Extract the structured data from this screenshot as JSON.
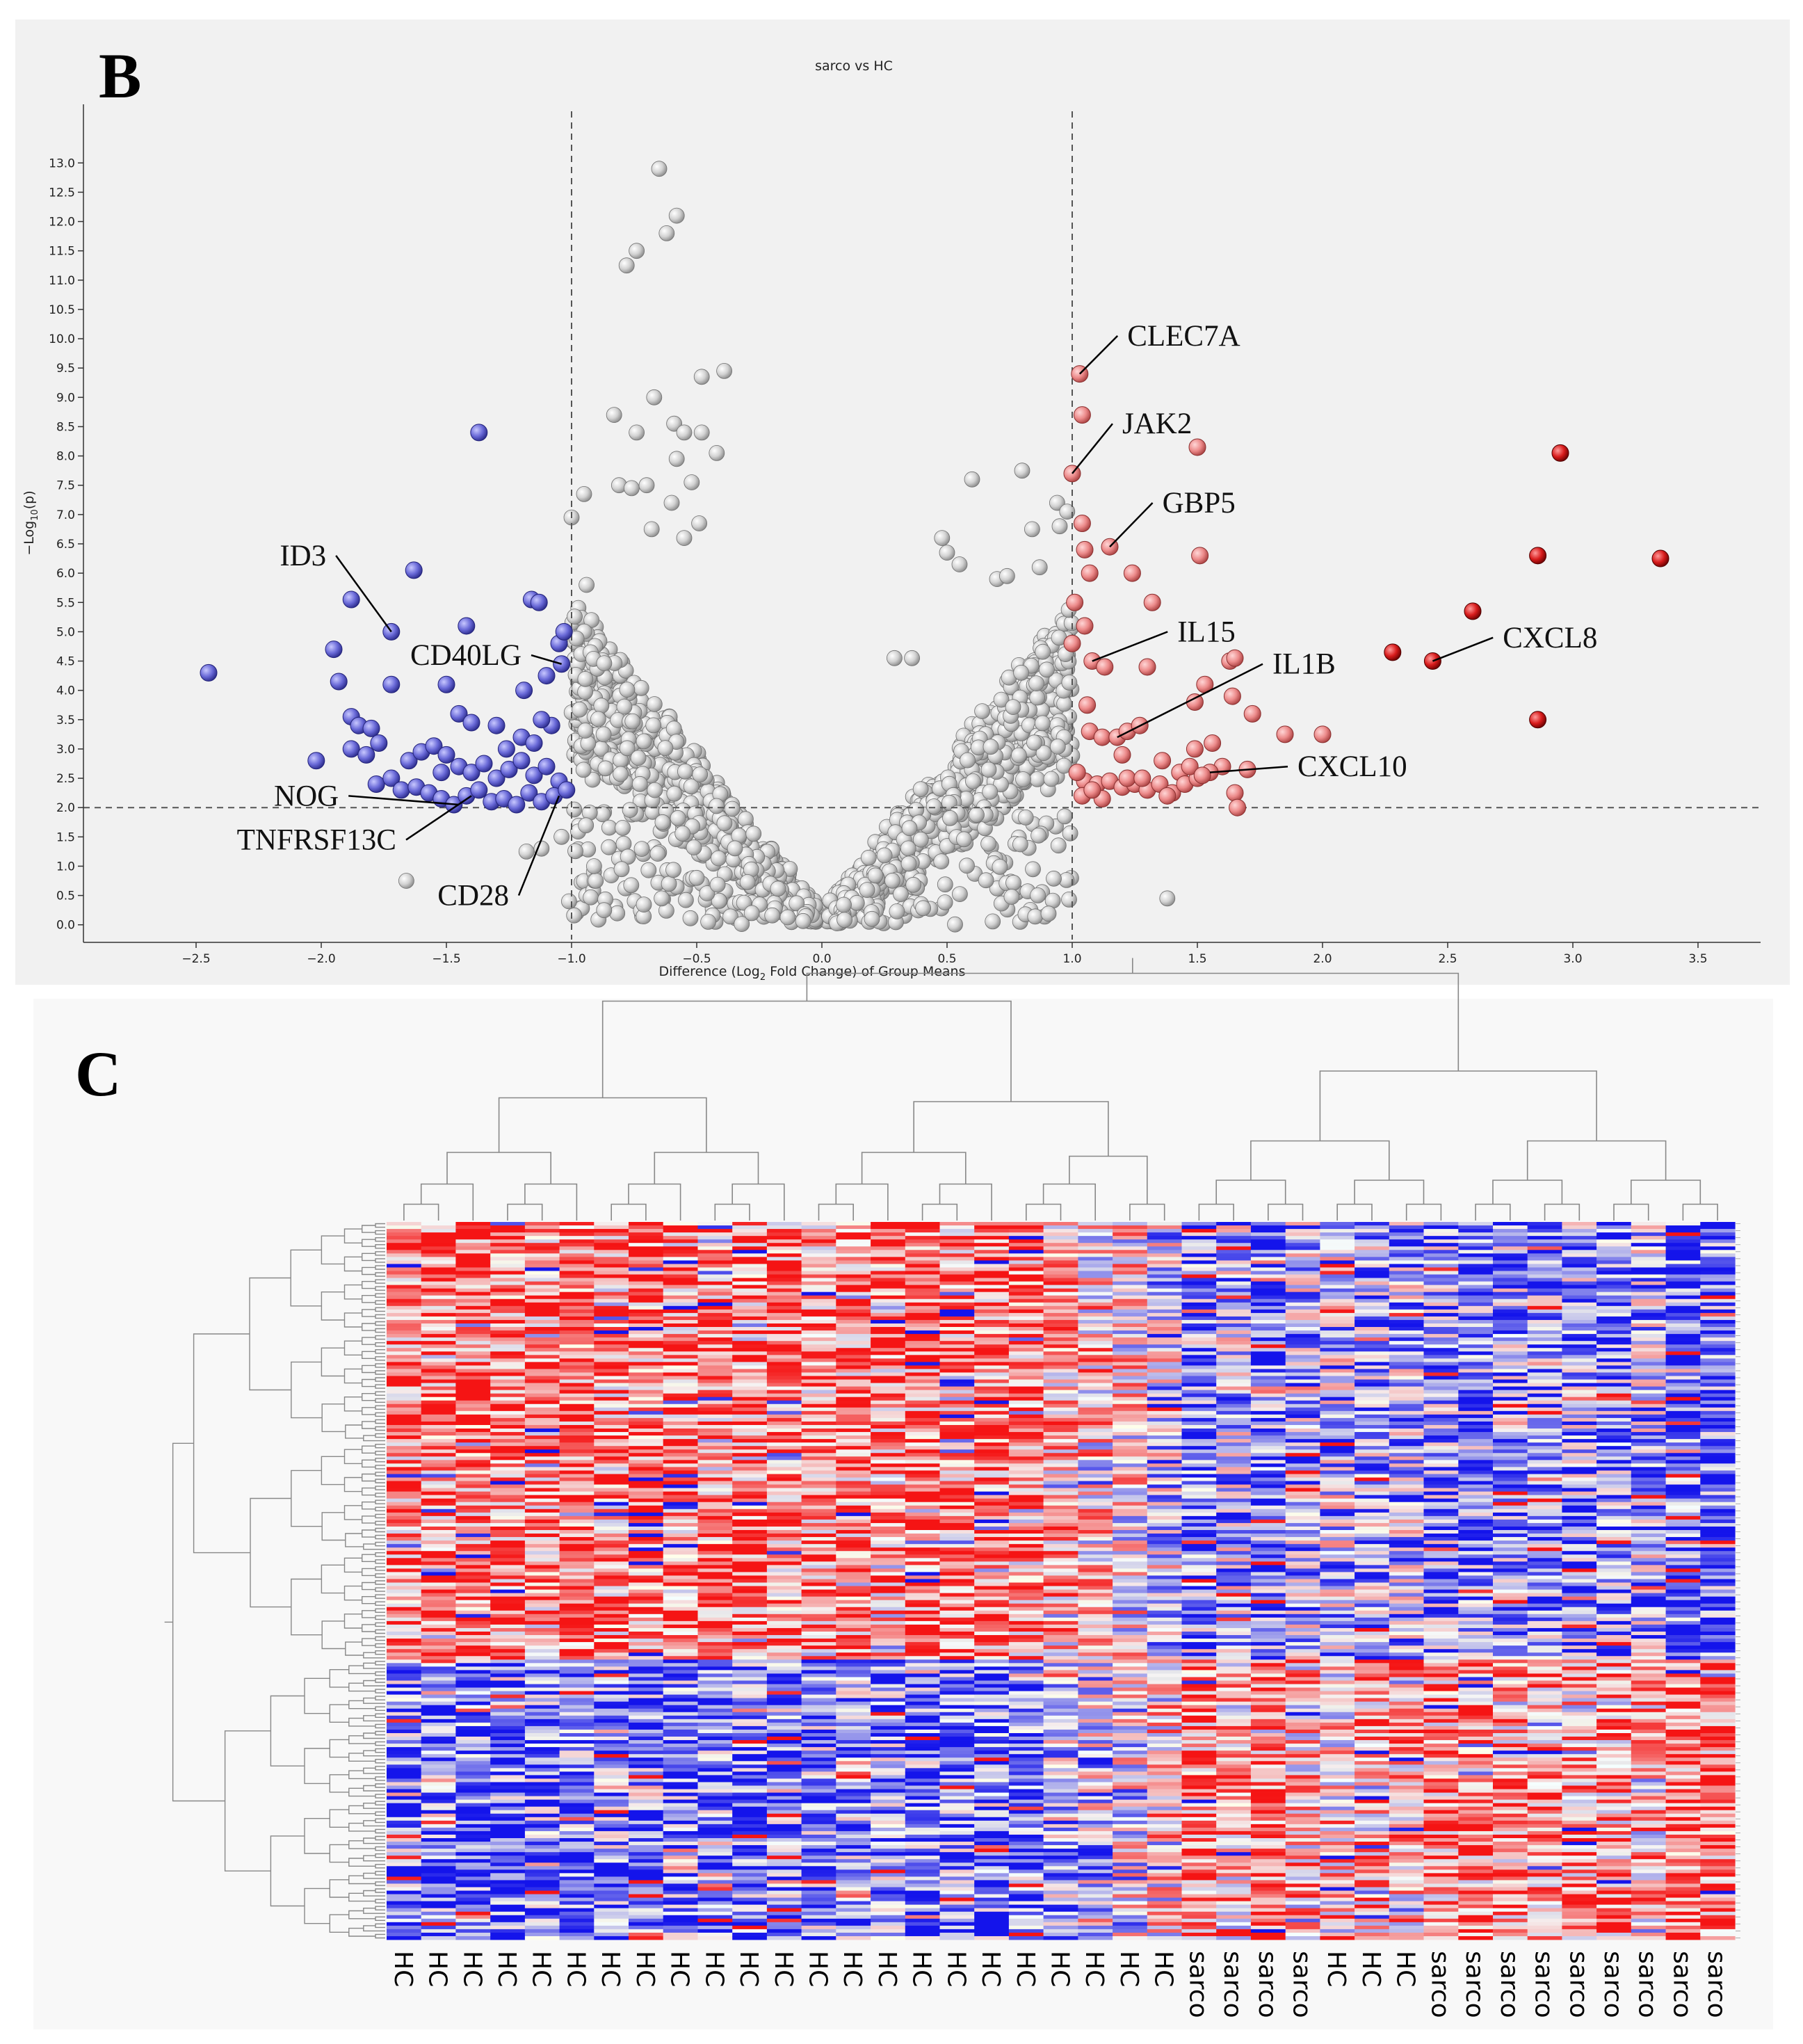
{
  "panel_b_label": "B",
  "panel_c_label": "C",
  "chart_data": [
    {
      "type": "scatter",
      "title": "sarco vs HC",
      "xlabel": "Difference (Log2 Fold Change) of Group Means",
      "xlabel_parts": {
        "prefix": "Difference (Log",
        "sub": "2",
        "suffix": " Fold Change) of Group Means"
      },
      "ylabel": "-Log10(p)",
      "ylabel_parts": {
        "prefix": "−Log",
        "sub": "10",
        "suffix": "(p)"
      },
      "xlim": [
        -2.95,
        3.75
      ],
      "ylim": [
        -0.3,
        14.0
      ],
      "xticks": [
        "-2.5",
        "-2.0",
        "-1.5",
        "-1.0",
        "-0.5",
        "0.0",
        "0.5",
        "1.0",
        "1.5",
        "2.0",
        "2.5",
        "3.0",
        "3.5"
      ],
      "xtick_values": [
        -2.5,
        -2.0,
        -1.5,
        -1.0,
        -0.5,
        0.0,
        0.5,
        1.0,
        1.5,
        2.0,
        2.5,
        3.0,
        3.5
      ],
      "yticks": [
        "0.0",
        "0.5",
        "1.0",
        "1.5",
        "2.0",
        "2.5",
        "3.0",
        "3.5",
        "4.0",
        "4.5",
        "5.0",
        "5.5",
        "6.0",
        "6.5",
        "7.0",
        "7.5",
        "8.0",
        "8.5",
        "9.0",
        "9.5",
        "10.0",
        "10.5",
        "11.0",
        "11.5",
        "12.0",
        "12.5",
        "13.0"
      ],
      "ytick_values": [
        0,
        0.5,
        1,
        1.5,
        2,
        2.5,
        3,
        3.5,
        4,
        4.5,
        5,
        5.5,
        6,
        6.5,
        7,
        7.5,
        8,
        8.5,
        9,
        9.5,
        10,
        10.5,
        11,
        11.5,
        12,
        12.5,
        13
      ],
      "thresholds": {
        "fold_change": [
          -1.0,
          1.0
        ],
        "neg_log10_p": 2.0
      },
      "colors": {
        "down": "#6a6ad8",
        "up_light": "#ec8a8a",
        "up_strong": "#d81c1c",
        "ns": "#c8c8c8",
        "background": "#f1f1f1"
      },
      "up_regulated": [
        {
          "x": 1.03,
          "y": 9.4
        },
        {
          "x": 1.04,
          "y": 8.7
        },
        {
          "x": 1.0,
          "y": 7.7
        },
        {
          "x": 1.04,
          "y": 6.85
        },
        {
          "x": 1.15,
          "y": 6.45
        },
        {
          "x": 1.5,
          "y": 8.15
        },
        {
          "x": 1.05,
          "y": 6.4
        },
        {
          "x": 1.07,
          "y": 6.0
        },
        {
          "x": 1.24,
          "y": 6.0
        },
        {
          "x": 1.51,
          "y": 6.3
        },
        {
          "x": 1.32,
          "y": 5.5
        },
        {
          "x": 1.01,
          "y": 5.5
        },
        {
          "x": 1.05,
          "y": 5.1
        },
        {
          "x": 1.0,
          "y": 4.8
        },
        {
          "x": 1.08,
          "y": 4.5
        },
        {
          "x": 1.13,
          "y": 4.4
        },
        {
          "x": 1.3,
          "y": 4.4
        },
        {
          "x": 1.63,
          "y": 4.5
        },
        {
          "x": 1.65,
          "y": 4.55
        },
        {
          "x": 1.06,
          "y": 3.75
        },
        {
          "x": 1.49,
          "y": 3.8
        },
        {
          "x": 1.53,
          "y": 4.1
        },
        {
          "x": 1.64,
          "y": 3.9
        },
        {
          "x": 1.72,
          "y": 3.6
        },
        {
          "x": 1.85,
          "y": 3.25
        },
        {
          "x": 2.0,
          "y": 3.25
        },
        {
          "x": 1.07,
          "y": 3.3
        },
        {
          "x": 1.12,
          "y": 3.2
        },
        {
          "x": 1.18,
          "y": 3.2
        },
        {
          "x": 1.22,
          "y": 3.3
        },
        {
          "x": 1.27,
          "y": 3.4
        },
        {
          "x": 1.49,
          "y": 3.0
        },
        {
          "x": 1.56,
          "y": 3.1
        },
        {
          "x": 1.36,
          "y": 2.8
        },
        {
          "x": 1.43,
          "y": 2.6
        },
        {
          "x": 1.6,
          "y": 2.7
        },
        {
          "x": 1.7,
          "y": 2.65
        },
        {
          "x": 1.2,
          "y": 2.9
        },
        {
          "x": 1.05,
          "y": 2.45
        },
        {
          "x": 1.1,
          "y": 2.4
        },
        {
          "x": 1.15,
          "y": 2.45
        },
        {
          "x": 1.2,
          "y": 2.35
        },
        {
          "x": 1.25,
          "y": 2.4
        },
        {
          "x": 1.3,
          "y": 2.3
        },
        {
          "x": 1.35,
          "y": 2.4
        },
        {
          "x": 1.4,
          "y": 2.25
        },
        {
          "x": 1.45,
          "y": 2.4
        },
        {
          "x": 1.5,
          "y": 2.5
        },
        {
          "x": 1.55,
          "y": 2.6
        },
        {
          "x": 1.65,
          "y": 2.25
        },
        {
          "x": 1.66,
          "y": 2.0
        },
        {
          "x": 1.04,
          "y": 2.2
        },
        {
          "x": 1.12,
          "y": 2.15
        },
        {
          "x": 1.22,
          "y": 2.5
        },
        {
          "x": 1.28,
          "y": 2.5
        },
        {
          "x": 1.38,
          "y": 2.2
        },
        {
          "x": 1.47,
          "y": 2.7
        },
        {
          "x": 1.52,
          "y": 2.55
        },
        {
          "x": 1.02,
          "y": 2.6
        },
        {
          "x": 1.08,
          "y": 2.3
        }
      ],
      "up_strong": [
        {
          "x": 2.95,
          "y": 8.05
        },
        {
          "x": 2.86,
          "y": 6.3
        },
        {
          "x": 3.35,
          "y": 6.25
        },
        {
          "x": 2.6,
          "y": 5.35
        },
        {
          "x": 2.28,
          "y": 4.65
        },
        {
          "x": 2.44,
          "y": 4.5
        },
        {
          "x": 2.86,
          "y": 3.5
        }
      ],
      "down_regulated": [
        {
          "x": -2.45,
          "y": 4.3
        },
        {
          "x": -1.37,
          "y": 8.4
        },
        {
          "x": -1.63,
          "y": 6.05
        },
        {
          "x": -1.72,
          "y": 5.0
        },
        {
          "x": -1.88,
          "y": 5.55
        },
        {
          "x": -1.95,
          "y": 4.7
        },
        {
          "x": -1.93,
          "y": 4.15
        },
        {
          "x": -1.72,
          "y": 4.1
        },
        {
          "x": -1.5,
          "y": 4.1
        },
        {
          "x": -1.42,
          "y": 5.1
        },
        {
          "x": -1.16,
          "y": 5.55
        },
        {
          "x": -1.13,
          "y": 5.5
        },
        {
          "x": -1.19,
          "y": 4.0
        },
        {
          "x": -1.05,
          "y": 4.8
        },
        {
          "x": -1.03,
          "y": 5.0
        },
        {
          "x": -1.04,
          "y": 4.45
        },
        {
          "x": -1.1,
          "y": 4.25
        },
        {
          "x": -2.02,
          "y": 2.8
        },
        {
          "x": -1.88,
          "y": 3.55
        },
        {
          "x": -1.85,
          "y": 3.4
        },
        {
          "x": -1.8,
          "y": 3.35
        },
        {
          "x": -1.77,
          "y": 3.1
        },
        {
          "x": -1.88,
          "y": 3.0
        },
        {
          "x": -1.82,
          "y": 2.9
        },
        {
          "x": -1.45,
          "y": 3.6
        },
        {
          "x": -1.4,
          "y": 3.45
        },
        {
          "x": -1.3,
          "y": 3.4
        },
        {
          "x": -1.2,
          "y": 3.2
        },
        {
          "x": -1.15,
          "y": 3.1
        },
        {
          "x": -1.08,
          "y": 3.4
        },
        {
          "x": -1.65,
          "y": 2.8
        },
        {
          "x": -1.6,
          "y": 2.95
        },
        {
          "x": -1.55,
          "y": 3.05
        },
        {
          "x": -1.5,
          "y": 2.9
        },
        {
          "x": -1.45,
          "y": 2.7
        },
        {
          "x": -1.4,
          "y": 2.6
        },
        {
          "x": -1.35,
          "y": 2.75
        },
        {
          "x": -1.3,
          "y": 2.5
        },
        {
          "x": -1.25,
          "y": 2.65
        },
        {
          "x": -1.2,
          "y": 2.8
        },
        {
          "x": -1.15,
          "y": 2.55
        },
        {
          "x": -1.1,
          "y": 2.7
        },
        {
          "x": -1.05,
          "y": 2.45
        },
        {
          "x": -1.78,
          "y": 2.4
        },
        {
          "x": -1.72,
          "y": 2.5
        },
        {
          "x": -1.68,
          "y": 2.3
        },
        {
          "x": -1.62,
          "y": 2.35
        },
        {
          "x": -1.57,
          "y": 2.25
        },
        {
          "x": -1.52,
          "y": 2.15
        },
        {
          "x": -1.47,
          "y": 2.05
        },
        {
          "x": -1.42,
          "y": 2.2
        },
        {
          "x": -1.37,
          "y": 2.3
        },
        {
          "x": -1.32,
          "y": 2.1
        },
        {
          "x": -1.27,
          "y": 2.15
        },
        {
          "x": -1.22,
          "y": 2.05
        },
        {
          "x": -1.17,
          "y": 2.25
        },
        {
          "x": -1.12,
          "y": 2.1
        },
        {
          "x": -1.07,
          "y": 2.2
        },
        {
          "x": -1.02,
          "y": 2.3
        },
        {
          "x": -1.52,
          "y": 2.6
        },
        {
          "x": -1.26,
          "y": 3.0
        },
        {
          "x": -1.12,
          "y": 3.5
        }
      ],
      "labels": [
        {
          "text": "CLEC7A",
          "x": 1.03,
          "y": 9.4,
          "tx": 1.22,
          "ty": 10.05
        },
        {
          "text": "JAK2",
          "x": 1.0,
          "y": 7.7,
          "tx": 1.2,
          "ty": 8.55
        },
        {
          "text": "GBP5",
          "x": 1.15,
          "y": 6.45,
          "tx": 1.36,
          "ty": 7.2
        },
        {
          "text": "IL15",
          "x": 1.08,
          "y": 4.5,
          "tx": 1.42,
          "ty": 5.0
        },
        {
          "text": "IL1B",
          "x": 1.18,
          "y": 3.2,
          "tx": 1.8,
          "ty": 4.45
        },
        {
          "text": "CXCL10",
          "x": 1.55,
          "y": 2.6,
          "tx": 1.9,
          "ty": 2.7
        },
        {
          "text": "CXCL8",
          "x": 2.44,
          "y": 4.5,
          "tx": 2.72,
          "ty": 4.9
        },
        {
          "text": "ID3",
          "x": -1.72,
          "y": 5.0,
          "tx": -1.98,
          "ty": 6.3
        },
        {
          "text": "CD40LG",
          "x": -1.04,
          "y": 4.45,
          "tx": -1.2,
          "ty": 4.6
        },
        {
          "text": "NOG",
          "x": -1.45,
          "y": 2.05,
          "tx": -1.93,
          "ty": 2.2
        },
        {
          "text": "TNFRSF13C",
          "x": -1.4,
          "y": 2.2,
          "tx": -1.7,
          "ty": 1.45
        },
        {
          "text": "CD28",
          "x": -1.05,
          "y": 2.2,
          "tx": -1.25,
          "ty": 0.5
        }
      ]
    },
    {
      "type": "heatmap",
      "title": "",
      "color_scale": {
        "low": "#1010e0",
        "mid": "#ffffff",
        "high": "#f01010"
      },
      "n_rows": 205,
      "columns": [
        "HC",
        "HC",
        "HC",
        "HC",
        "HC",
        "HC",
        "HC",
        "HC",
        "HC",
        "HC",
        "HC",
        "HC",
        "HC",
        "HC",
        "HC",
        "HC",
        "HC",
        "HC",
        "HC",
        "HC",
        "HC",
        "HC",
        "HC",
        "sarco",
        "sarco",
        "sarco",
        "sarco",
        "HC",
        "HC",
        "HC",
        "sarco",
        "sarco",
        "sarco",
        "sarco",
        "sarco",
        "sarco",
        "sarco",
        "sarco",
        "sarco"
      ],
      "column_group_means": [
        0.55,
        0.6,
        0.65,
        0.6,
        0.55,
        0.6,
        0.5,
        0.6,
        0.55,
        0.55,
        0.6,
        0.55,
        0.5,
        0.55,
        0.5,
        0.6,
        0.55,
        0.6,
        0.55,
        0.3,
        0.2,
        0.1,
        -0.2,
        -0.55,
        -0.3,
        -0.6,
        -0.3,
        -0.25,
        -0.4,
        -0.3,
        -0.45,
        -0.5,
        -0.45,
        -0.5,
        -0.4,
        -0.45,
        -0.35,
        -0.65,
        -0.6
      ],
      "block_split_row": 125
    }
  ]
}
